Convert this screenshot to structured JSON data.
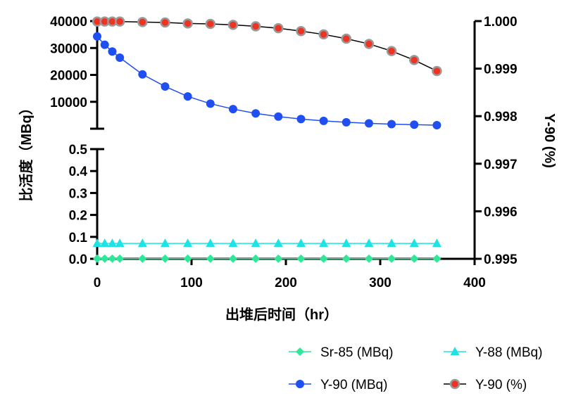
{
  "chart_data": {
    "type": "line",
    "xlabel": "出堆后时间（hr）",
    "ylabel_left": "比活度（MBq）",
    "ylabel_right": "Y-90 (%)",
    "x_ticks": [
      "0",
      "100",
      "200",
      "300",
      "400"
    ],
    "x_range": [
      0,
      400
    ],
    "y_left_upper": {
      "range": [
        0,
        40000
      ],
      "ticks": [
        "10000",
        "20000",
        "30000",
        "40000"
      ]
    },
    "y_left_lower": {
      "range": [
        0,
        0.5
      ],
      "ticks": [
        "0.0",
        "0.1",
        "0.2",
        "0.3",
        "0.4",
        "0.5"
      ]
    },
    "y_right": {
      "range": [
        0.995,
        1.0
      ],
      "ticks": [
        "0.995",
        "0.996",
        "0.997",
        "0.998",
        "0.999",
        "1.000"
      ]
    },
    "x": [
      0,
      8,
      16,
      24,
      48,
      72,
      96,
      120,
      144,
      168,
      192,
      216,
      240,
      264,
      288,
      312,
      336,
      360
    ],
    "series": [
      {
        "name": "Sr-85 (MBq)",
        "axis": "left_lower",
        "color": "#2ee89a",
        "marker": "diamond",
        "values": [
          0.001,
          0.001,
          0.001,
          0.001,
          0.001,
          0.001,
          0.001,
          0.001,
          0.001,
          0.001,
          0.001,
          0.001,
          0.001,
          0.001,
          0.001,
          0.001,
          0.001,
          0.001
        ]
      },
      {
        "name": "Y-88 (MBq)",
        "axis": "left_lower",
        "color": "#1fe3e3",
        "marker": "triangle",
        "values": [
          0.07,
          0.07,
          0.07,
          0.07,
          0.07,
          0.07,
          0.07,
          0.07,
          0.07,
          0.07,
          0.07,
          0.07,
          0.07,
          0.07,
          0.07,
          0.07,
          0.07,
          0.07
        ]
      },
      {
        "name": "Y-90 (MBq)",
        "axis": "left_upper",
        "color": "#1f4ff0",
        "marker": "circle",
        "values": [
          34300,
          31200,
          28700,
          26400,
          20200,
          15700,
          12000,
          9300,
          7300,
          5700,
          4500,
          3600,
          2900,
          2400,
          2000,
          1700,
          1500,
          1300
        ]
      },
      {
        "name": "Y-90 (%)",
        "axis": "right",
        "color": "#ee3322",
        "marker": "circle-gray-edge",
        "values": [
          0.99999,
          0.99999,
          0.99999,
          0.99999,
          0.99998,
          0.99997,
          0.99995,
          0.99994,
          0.99992,
          0.99989,
          0.99985,
          0.99979,
          0.99972,
          0.99963,
          0.99952,
          0.99937,
          0.99918,
          0.99895
        ]
      }
    ],
    "legend_position": "bottom-right",
    "grid": false
  }
}
